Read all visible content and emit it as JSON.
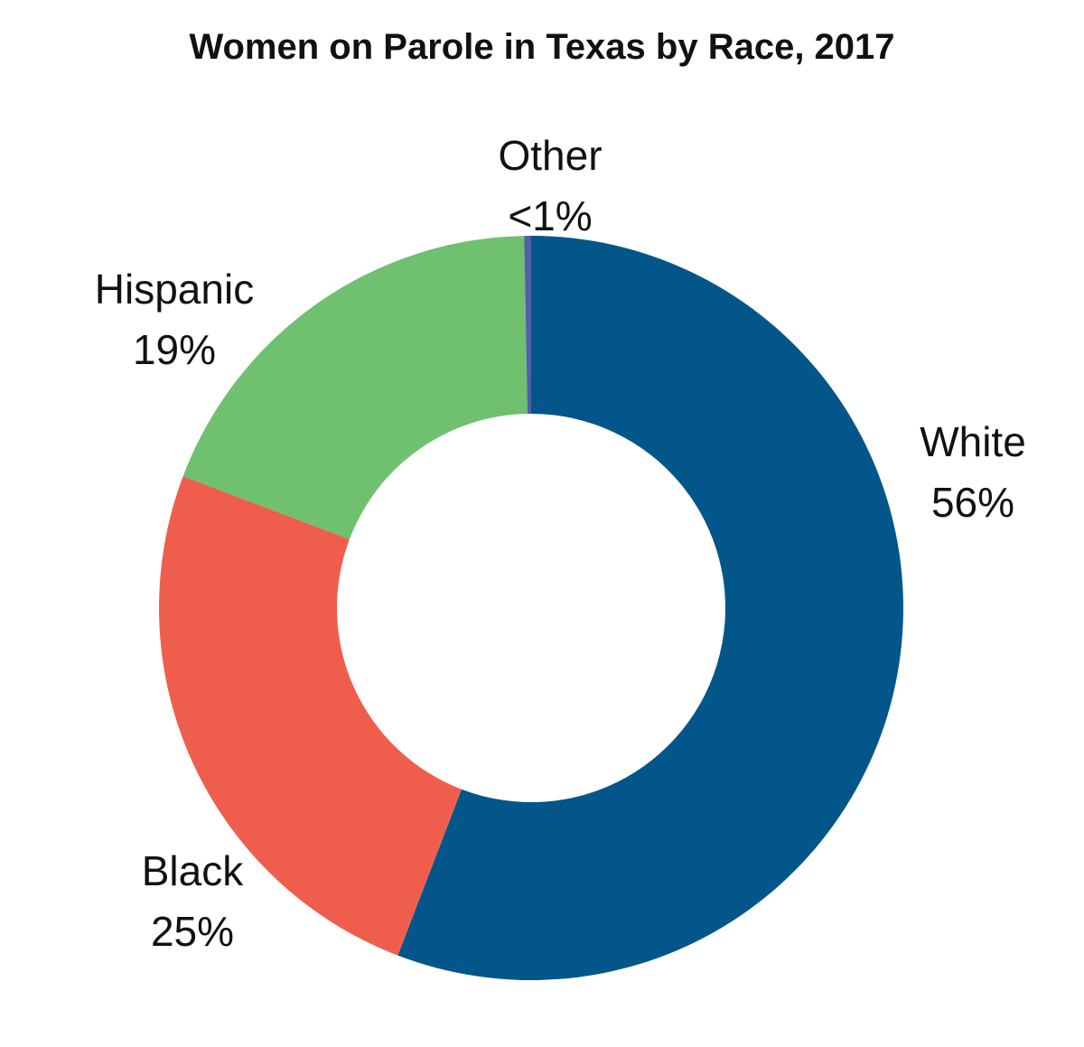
{
  "chart_data": {
    "type": "pie",
    "title": "Women on Parole in Texas by Race, 2017",
    "slices": [
      {
        "label": "White",
        "value": 56,
        "display": "56%",
        "color": "#02568a"
      },
      {
        "label": "Black",
        "value": 25,
        "display": "25%",
        "color": "#ef5e4d"
      },
      {
        "label": "Hispanic",
        "value": 19,
        "display": "19%",
        "color": "#6fc06f"
      },
      {
        "label": "Other",
        "value": 0.3,
        "display": "<1%",
        "color": "#4f5fa8"
      }
    ],
    "donut": true
  }
}
